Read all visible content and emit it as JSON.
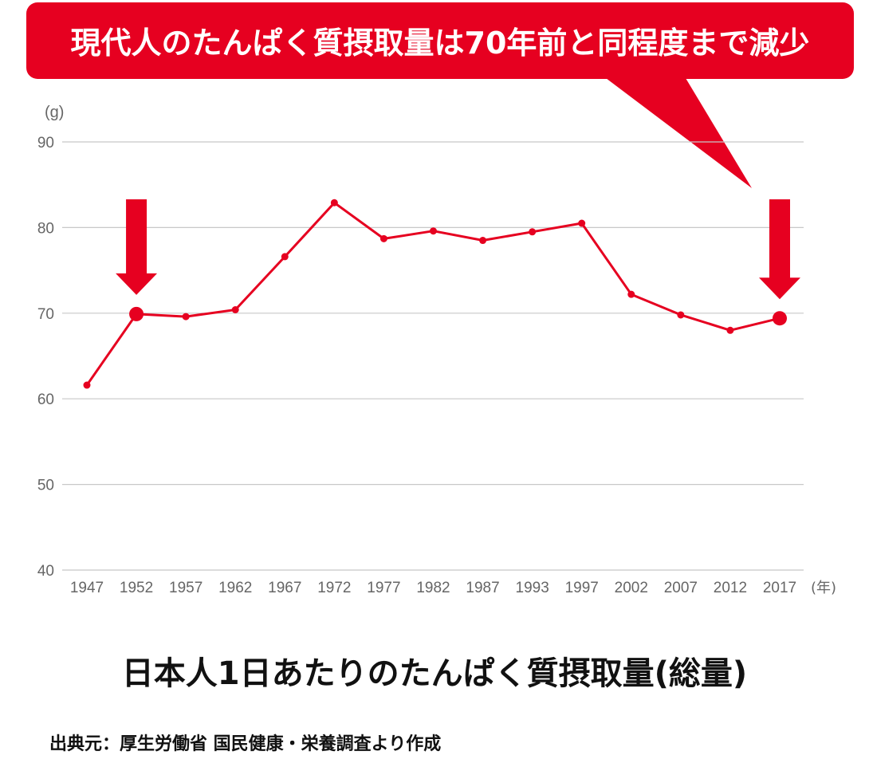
{
  "chart_data": {
    "type": "line",
    "title": "現代人のたんぱく質摂取量は70年前と同程度まで減少",
    "subtitle": "日本人1日あたりのたんぱく質摂取量(総量)",
    "ylabel": "(g)",
    "xlabel": "(年)",
    "ylim": [
      40,
      90
    ],
    "yticks": [
      40,
      50,
      60,
      70,
      80,
      90
    ],
    "grid": true,
    "categories": [
      "1947",
      "1952",
      "1957",
      "1962",
      "1967",
      "1972",
      "1977",
      "1982",
      "1987",
      "1993",
      "1997",
      "2002",
      "2007",
      "2012",
      "2017"
    ],
    "series": [
      {
        "values": [
          61.6,
          69.9,
          69.6,
          70.4,
          76.6,
          82.9,
          78.7,
          79.6,
          78.5,
          79.5,
          80.5,
          72.2,
          69.8,
          68.0,
          69.4
        ]
      }
    ],
    "highlighted": [
      "1952",
      "2017"
    ],
    "colors": {
      "line": "#e60020",
      "banner": "#e60020",
      "grid": "#c8c8c8",
      "tick_text": "#666666"
    }
  },
  "source_text": "出典元：厚生労働省 国民健康・栄養調査より作成"
}
